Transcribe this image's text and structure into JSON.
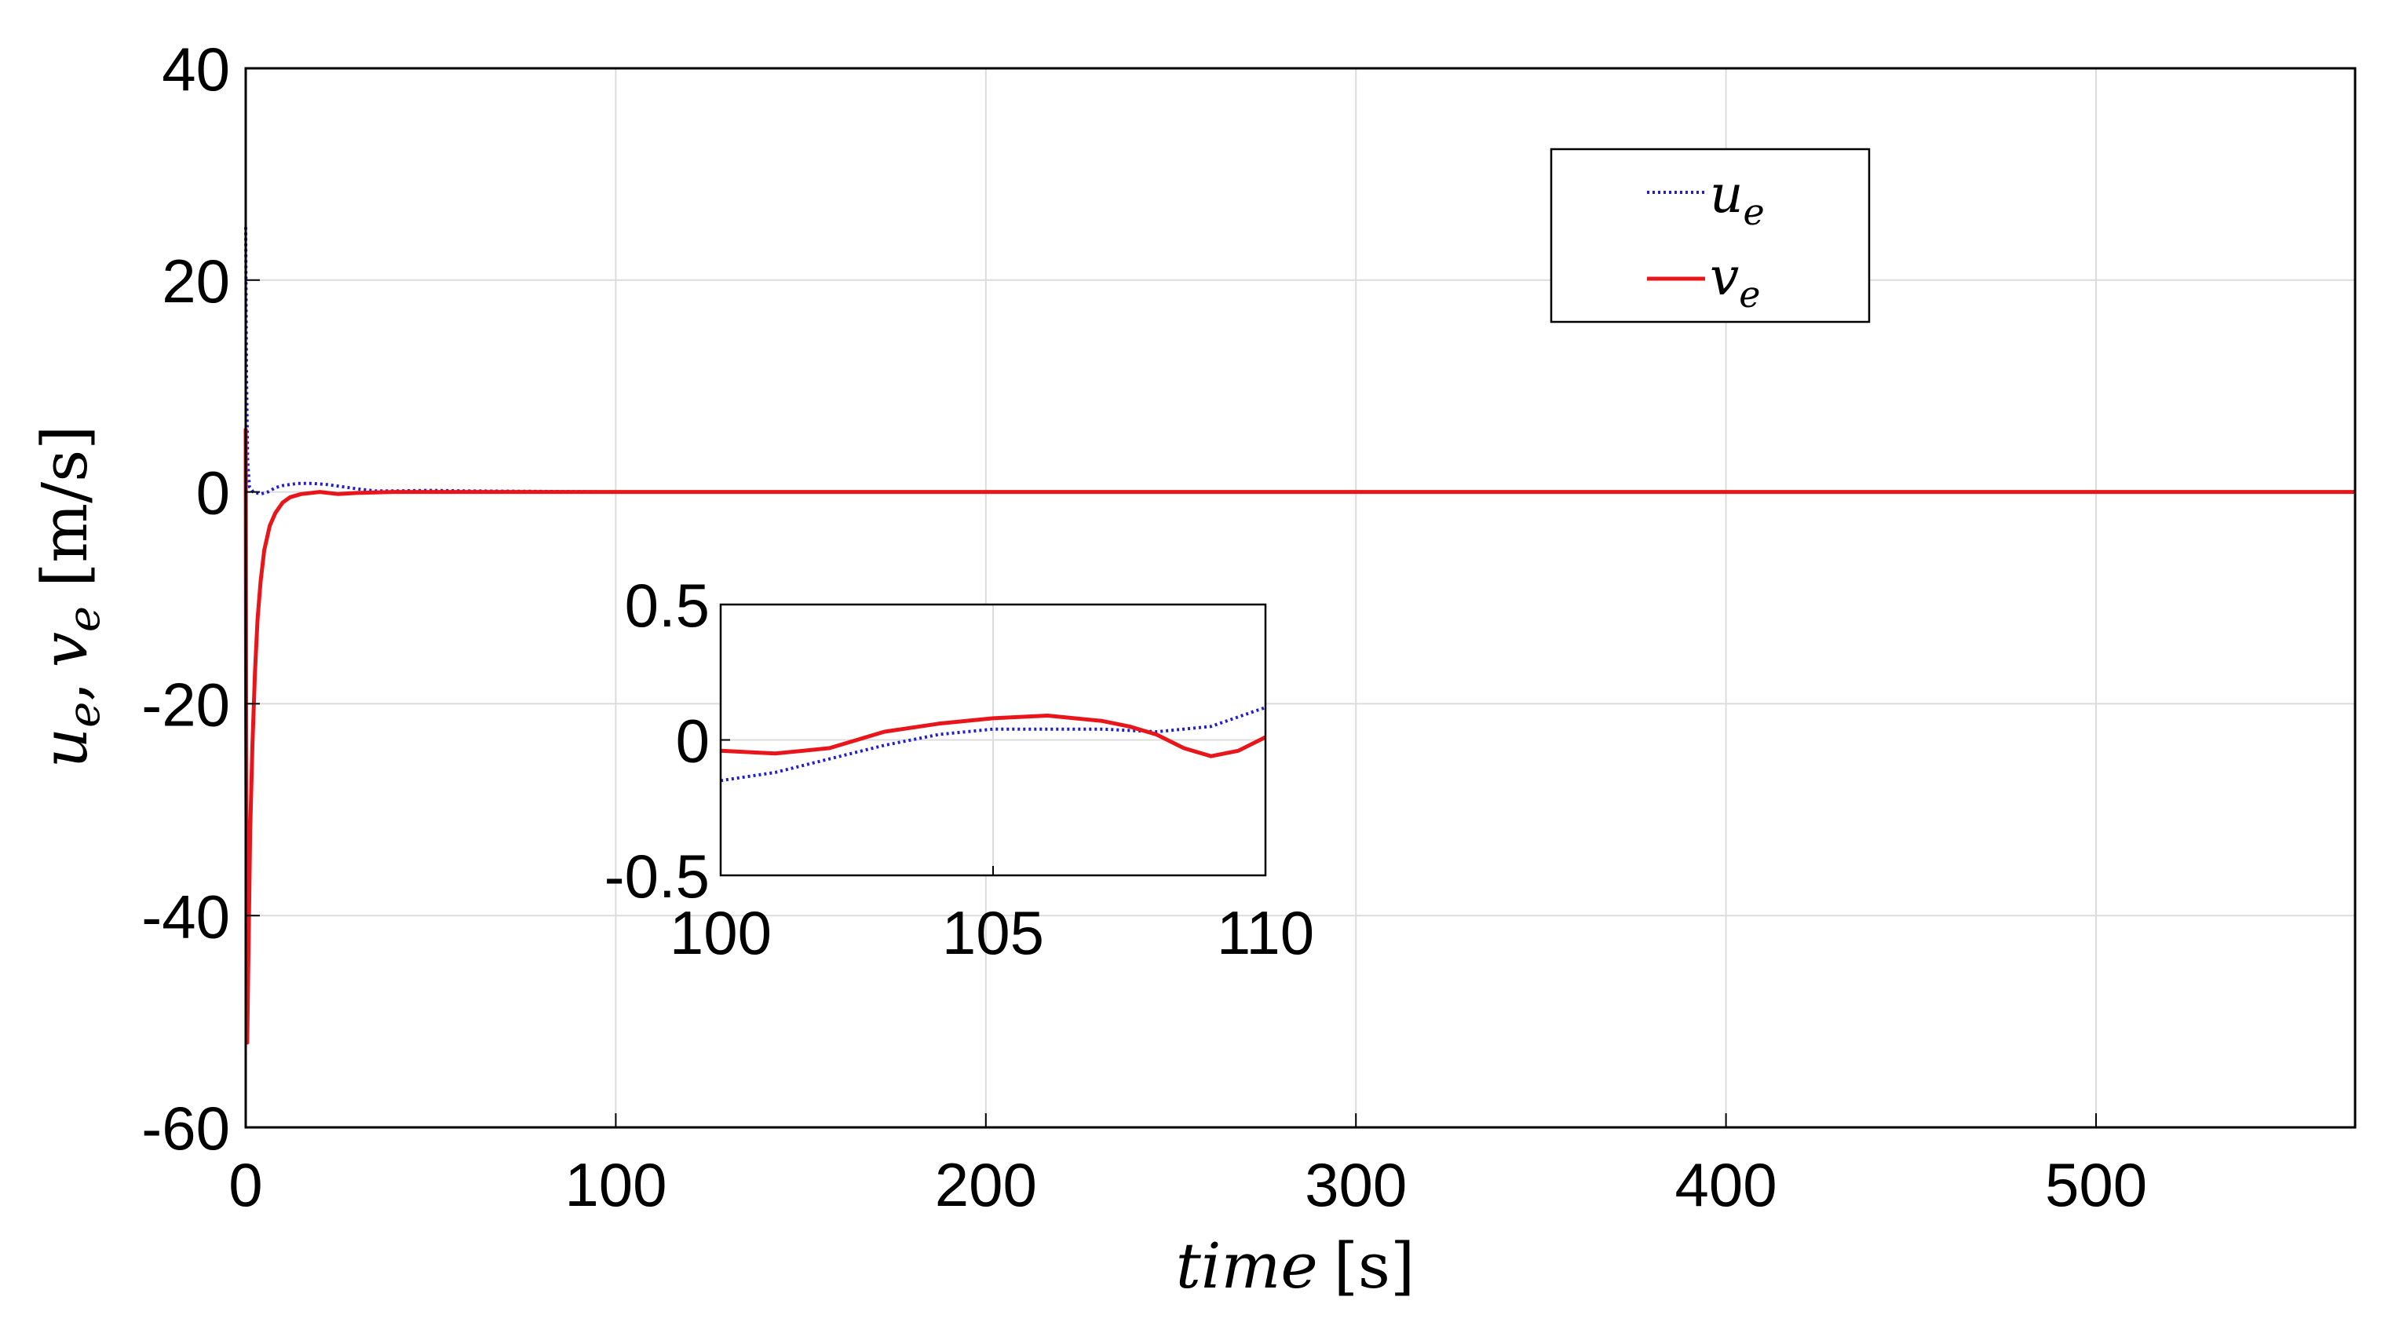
{
  "chart_data": [
    {
      "type": "line",
      "role": "main",
      "xlabel_var": "time",
      "xlabel_unit": "[s]",
      "ylabel_var": "u",
      "ylabel_sub1": "e",
      "ylabel_sep": ",",
      "ylabel_var2": "v",
      "ylabel_sub2": "e",
      "ylabel_unit": "[m/s]",
      "xlim": [
        0,
        570
      ],
      "ylim": [
        -60,
        40
      ],
      "xticks": [
        0,
        100,
        200,
        300,
        400,
        500
      ],
      "xtick_labels": [
        "0",
        "100",
        "200",
        "300",
        "400",
        "500"
      ],
      "yticks": [
        40,
        20,
        0,
        -20,
        -40,
        -60
      ],
      "ytick_labels": [
        "40",
        "20",
        "0",
        "-20",
        "-40",
        "-60"
      ],
      "grid": true,
      "legend": {
        "position": "top-right",
        "entries": [
          {
            "var": "u",
            "sub": "e",
            "color": "#1f1fd0",
            "style": "dotted"
          },
          {
            "var": "v",
            "sub": "e",
            "color": "#e8161b",
            "style": "solid"
          }
        ]
      },
      "series": [
        {
          "name": "u_e",
          "color": "#1f1fd0",
          "style": "dotted",
          "x": [
            0,
            0.2,
            0.5,
            1,
            2,
            4,
            6,
            8,
            10,
            14,
            18,
            22,
            26,
            30,
            35,
            40,
            50,
            60,
            80,
            100,
            150,
            200,
            250,
            300,
            350,
            400,
            450,
            500,
            570
          ],
          "y": [
            25,
            12,
            3,
            0.5,
            0,
            -0.2,
            0,
            0.4,
            0.6,
            0.8,
            0.8,
            0.7,
            0.5,
            0.3,
            0.1,
            0.1,
            0.15,
            0.1,
            0.05,
            0,
            0,
            0,
            0,
            0,
            0,
            0,
            0,
            0,
            0
          ]
        },
        {
          "name": "v_e",
          "color": "#e8161b",
          "style": "solid",
          "x": [
            0,
            0.1,
            0.4,
            0.8,
            1.2,
            1.8,
            2.5,
            3.2,
            4,
            5,
            6.5,
            8,
            10,
            12,
            15,
            20,
            25,
            30,
            40,
            50,
            100,
            150,
            200,
            250,
            300,
            350,
            400,
            450,
            500,
            570
          ],
          "y": [
            6,
            -20,
            -52,
            -42,
            -32,
            -24,
            -17,
            -12,
            -8.5,
            -5.5,
            -3.2,
            -2,
            -1,
            -0.5,
            -0.2,
            0,
            -0.2,
            -0.1,
            0,
            0,
            0,
            0,
            0,
            0,
            0,
            0,
            0,
            0,
            0,
            0
          ]
        }
      ]
    },
    {
      "type": "line",
      "role": "inset",
      "xlim": [
        100,
        110
      ],
      "ylim": [
        -0.5,
        0.5
      ],
      "xticks": [
        100,
        105,
        110
      ],
      "xtick_labels": [
        "100",
        "105",
        "110"
      ],
      "yticks": [
        0.5,
        0,
        -0.5
      ],
      "ytick_labels": [
        "0.5",
        "0",
        "-0.5"
      ],
      "grid": true,
      "series": [
        {
          "name": "u_e",
          "color": "#1f1fd0",
          "style": "dotted",
          "x": [
            100,
            101,
            102,
            103,
            104,
            105,
            106,
            107,
            108,
            109,
            110
          ],
          "y": [
            -0.15,
            -0.12,
            -0.07,
            -0.02,
            0.02,
            0.04,
            0.04,
            0.04,
            0.03,
            0.05,
            0.12
          ]
        },
        {
          "name": "v_e",
          "color": "#e8161b",
          "style": "solid",
          "x": [
            100,
            101,
            102,
            103,
            104,
            105,
            106,
            107,
            107.5,
            108,
            108.5,
            109,
            109.5,
            110
          ],
          "y": [
            -0.04,
            -0.05,
            -0.03,
            0.03,
            0.06,
            0.08,
            0.09,
            0.07,
            0.05,
            0.02,
            -0.03,
            -0.06,
            -0.04,
            0.01
          ]
        }
      ]
    }
  ]
}
